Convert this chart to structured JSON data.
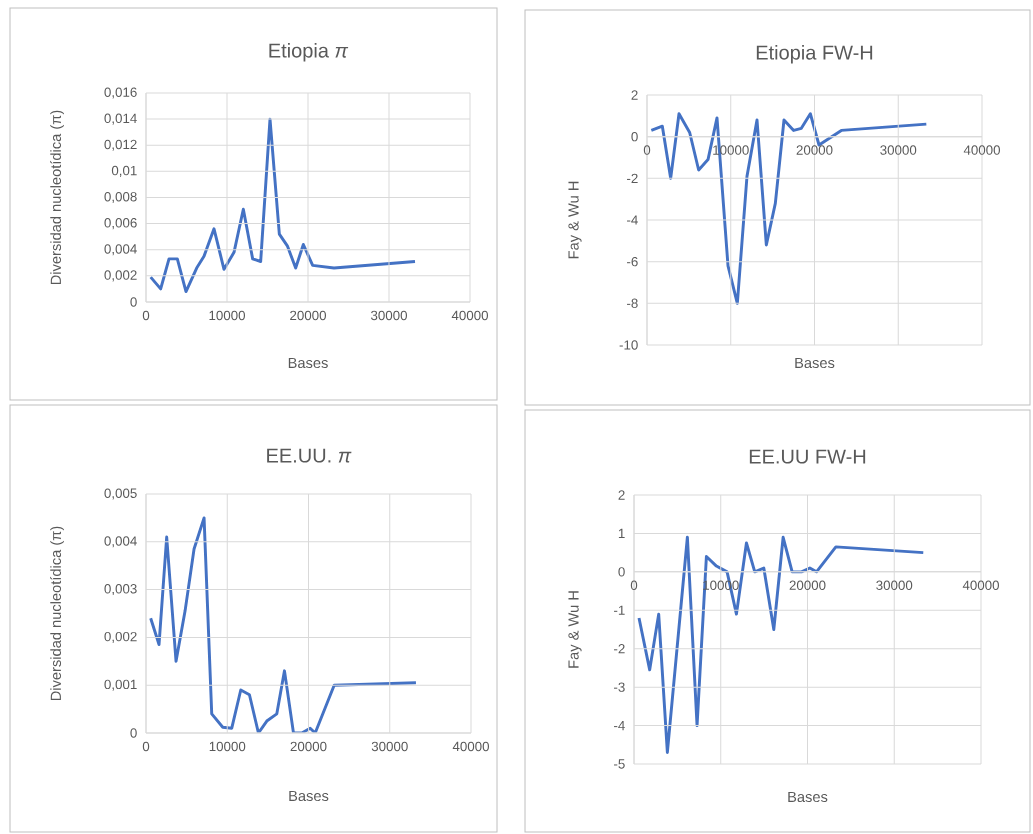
{
  "chart_data": [
    {
      "type": "line",
      "title": "Etiopia *π*",
      "xlabel": "Bases",
      "ylabel": "Diversidad nucleotídica (π)",
      "x": [
        576,
        1811,
        2840,
        3868,
        4938,
        6255,
        7160,
        8395,
        9630,
        10864,
        12016,
        13169,
        14156,
        15309,
        16461,
        17449,
        18477,
        19424,
        20576,
        23210,
        33210
      ],
      "series": [
        {
          "color": "#4472c4",
          "values": [
            0.0019,
            0.001,
            0.0033,
            0.0033,
            0.0008,
            0.0026,
            0.0035,
            0.0056,
            0.0025,
            0.0038,
            0.0071,
            0.0033,
            0.0031,
            0.014,
            0.0052,
            0.0043,
            0.0026,
            0.0044,
            0.0028,
            0.0026,
            0.0031
          ]
        }
      ],
      "xlim": [
        0,
        40000
      ],
      "xticks": [
        0,
        10000,
        20000,
        30000,
        40000
      ],
      "ylim": [
        0,
        0.016
      ],
      "yticks": [
        0,
        {
          "value": 0.002,
          "label": "0,002"
        },
        {
          "value": 0.004,
          "label": "0,004"
        },
        {
          "value": 0.006,
          "label": "0,006"
        },
        {
          "value": 0.008,
          "label": "0,008"
        },
        {
          "value": 0.01,
          "label": "0,01"
        },
        {
          "value": 0.012,
          "label": "0,012"
        },
        {
          "value": 0.014,
          "label": "0,014"
        },
        {
          "value": 0.016,
          "label": "0,016"
        }
      ],
      "grid": true
    },
    {
      "type": "line",
      "title": "Etiopia FW-H",
      "xlabel": "Bases",
      "ylabel": "Fay & Wu H",
      "x": [
        517,
        1831,
        2826,
        3821,
        5095,
        6169,
        7284,
        8358,
        9672,
        10786,
        11940,
        13134,
        14249,
        15323,
        16358,
        17512,
        18428,
        19503,
        20537,
        23204,
        33353
      ],
      "series": [
        {
          "color": "#4472c4",
          "values": [
            0.3,
            0.5,
            -2.0,
            1.1,
            0.2,
            -1.6,
            -1.1,
            0.9,
            -6.2,
            -8.0,
            -1.9,
            0.8,
            -5.2,
            -3.2,
            0.8,
            0.3,
            0.4,
            1.1,
            -0.4,
            0.3,
            0.6
          ]
        }
      ],
      "xlim": [
        0,
        40000
      ],
      "xticks": [
        0,
        10000,
        20000,
        30000,
        40000
      ],
      "ylim": [
        -10,
        2
      ],
      "yticks": [
        -10,
        -8,
        -6,
        -4,
        -2,
        0,
        2
      ],
      "grid": true
    },
    {
      "type": "line",
      "title": "EE.UU. *π*",
      "xlabel": "Bases",
      "ylabel": "Diversidad nucleotídica (π)",
      "x": [
        575,
        1602,
        2546,
        3696,
        4805,
        5914,
        7146,
        8090,
        9446,
        10554,
        11663,
        12731,
        13840,
        14867,
        16099,
        17043,
        18152,
        19179,
        20205,
        20821,
        23162,
        33224
      ],
      "series": [
        {
          "color": "#4472c4",
          "values": [
            0.0024,
            0.00185,
            0.0041,
            0.0015,
            0.00255,
            0.00385,
            0.0045,
            0.0004,
            0.00012,
            0.0001,
            0.0009,
            0.0008,
            0.0,
            0.00025,
            0.0004,
            0.0013,
            0.0,
            0.0,
            0.0001,
            0.0,
            0.001,
            0.00105
          ]
        }
      ],
      "xlim": [
        0,
        40000
      ],
      "xticks": [
        0,
        10000,
        20000,
        30000,
        40000
      ],
      "ylim": [
        0,
        0.005
      ],
      "yticks": [
        0,
        {
          "value": 0.001,
          "label": "0,001"
        },
        {
          "value": 0.002,
          "label": "0,002"
        },
        {
          "value": 0.003,
          "label": "0,003"
        },
        {
          "value": 0.004,
          "label": "0,004"
        },
        {
          "value": 0.005,
          "label": "0,005"
        }
      ],
      "grid": true
    },
    {
      "type": "line",
      "title": "EE.UU FW-H",
      "xlabel": "Bases",
      "ylabel": "Fay & Wu H",
      "x": [
        577,
        1808,
        2846,
        3846,
        6154,
        7269,
        8346,
        9500,
        10731,
        11808,
        12962,
        13923,
        14962,
        16115,
        17192,
        18231,
        19308,
        20269,
        21038,
        23269,
        33346
      ],
      "series": [
        {
          "color": "#4472c4",
          "values": [
            -1.2,
            -2.55,
            -1.1,
            -4.7,
            0.9,
            -4.0,
            0.4,
            0.15,
            0.0,
            -1.1,
            0.75,
            0.0,
            0.1,
            -1.5,
            0.9,
            0.0,
            0.0,
            0.1,
            0.0,
            0.65,
            0.5
          ]
        }
      ],
      "xlim": [
        0,
        40000
      ],
      "xticks": [
        0,
        10000,
        20000,
        30000,
        40000
      ],
      "ylim": [
        -5,
        2
      ],
      "yticks": [
        -5,
        -4,
        -3,
        -2,
        -1,
        0,
        1,
        2
      ],
      "grid": true
    }
  ]
}
